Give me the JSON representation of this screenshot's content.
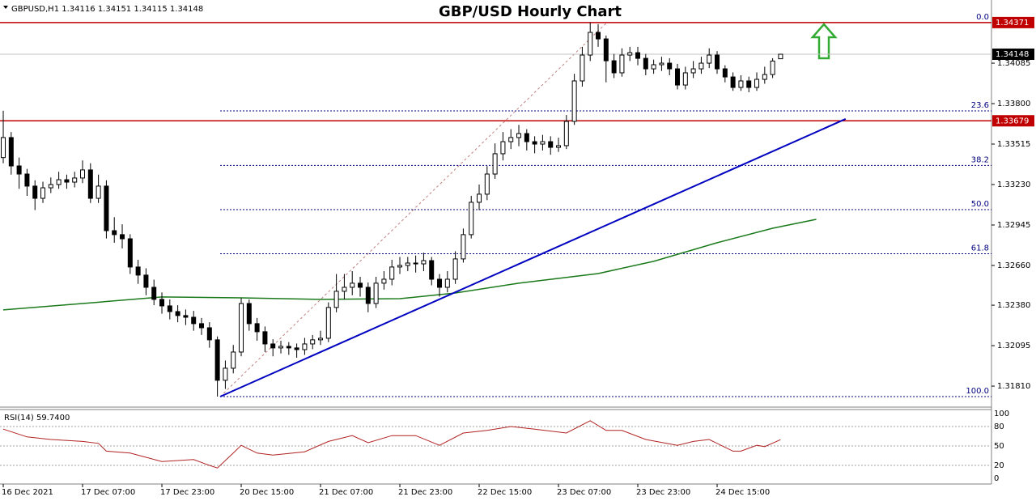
{
  "chart_data": {
    "type": "candlestick",
    "title": "GBP/USD Hourly Chart",
    "symbol": "GBPUSD,H1",
    "xlim": [
      -0.41,
      124.59
    ],
    "ylim": [
      1.31662,
      1.3453
    ],
    "yticks": [
      1.34085,
      {
        "value": 1.338,
        "label": "1.33800"
      },
      1.33515,
      {
        "value": 1.3323,
        "label": "1.33230"
      },
      1.32945,
      {
        "value": 1.3266,
        "label": "1.32660"
      },
      {
        "value": 1.3238,
        "label": "1.32380"
      },
      1.32095,
      {
        "value": 1.3181,
        "label": "1.31810"
      }
    ],
    "xticks": [
      {
        "value": 0,
        "label": "16 Dec 2021"
      },
      {
        "value": 10,
        "label": "17 Dec 07:00"
      },
      {
        "value": 20,
        "label": "17 Dec 23:00"
      },
      {
        "value": 30,
        "label": "20 Dec 15:00"
      },
      {
        "value": 40,
        "label": "21 Dec 07:00"
      },
      {
        "value": 50,
        "label": "21 Dec 23:00"
      },
      {
        "value": 60,
        "label": "22 Dec 15:00"
      },
      {
        "value": 70,
        "label": "23 Dec 07:00"
      },
      {
        "value": 80,
        "label": "23 Dec 23:00"
      },
      {
        "value": 90,
        "label": "24 Dec 15:00"
      }
    ],
    "candles": {
      "open": [
        1.3342,
        1.33561,
        1.33361,
        1.33304,
        1.33219,
        1.33133,
        1.33207,
        1.3323,
        1.33264,
        1.33247,
        1.33276,
        1.33333,
        1.33133,
        1.33219,
        1.32905,
        1.32877,
        1.32848,
        1.32649,
        1.32592,
        1.32506,
        1.32421,
        1.32375,
        1.32335,
        1.32307,
        1.32295,
        1.3225,
        1.32221,
        1.32136,
        1.31851,
        1.31936,
        1.3205,
        1.32392,
        1.3225,
        1.32193,
        1.32107,
        1.32079,
        1.3209,
        1.32079,
        1.32067,
        1.32107,
        1.32136,
        1.32147,
        1.32364,
        1.32478,
        1.32506,
        1.32535,
        1.32506,
        1.32392,
        1.32535,
        1.32563,
        1.32649,
        1.3266,
        1.32677,
        1.32671,
        1.32694,
        1.32563,
        1.32506,
        1.32563,
        1.32706,
        1.32877,
        1.33105,
        1.33162,
        1.33304,
        1.33447,
        1.33532,
        1.33561,
        1.33589,
        1.33532,
        1.33515,
        1.33532,
        1.33492,
        1.33504,
        1.33675,
        1.3396,
        1.34142,
        1.34302,
        1.34256,
        1.34102,
        1.34017,
        1.34142,
        1.34159,
        1.34119,
        1.34045,
        1.34074,
        1.34085,
        1.34045,
        1.33931,
        1.34017,
        1.34045,
        1.34085,
        1.34142,
        1.34045,
        1.33988,
        1.33914,
        1.3396,
        1.33914,
        1.33971,
        1.34005,
        1.34116
      ],
      "high": [
        1.3375,
        1.336,
        1.3342,
        1.3334,
        1.3326,
        1.3325,
        1.3328,
        1.3332,
        1.333,
        1.3332,
        1.334,
        1.3338,
        1.333,
        1.3326,
        1.33,
        1.3295,
        1.3288,
        1.327,
        1.3264,
        1.3256,
        1.3247,
        1.3242,
        1.3238,
        1.3235,
        1.3234,
        1.3229,
        1.3226,
        1.3216,
        1.3199,
        1.321,
        1.3243,
        1.3242,
        1.3229,
        1.3223,
        1.3214,
        1.3213,
        1.3212,
        1.3211,
        1.3215,
        1.3217,
        1.322,
        1.324,
        1.326,
        1.326,
        1.3262,
        1.3258,
        1.3254,
        1.3258,
        1.3262,
        1.327,
        1.3272,
        1.3272,
        1.3273,
        1.3275,
        1.3272,
        1.326,
        1.3262,
        1.3276,
        1.3292,
        1.3315,
        1.3323,
        1.3336,
        1.3352,
        1.336,
        1.3362,
        1.3365,
        1.3362,
        1.3357,
        1.3358,
        1.3357,
        1.3356,
        1.3372,
        1.3401,
        1.342,
        1.34371,
        1.3436,
        1.3428,
        1.3415,
        1.3419,
        1.342,
        1.342,
        1.3415,
        1.3411,
        1.3413,
        1.3412,
        1.3408,
        1.3406,
        1.341,
        1.3413,
        1.3419,
        1.3417,
        1.3407,
        1.3402,
        1.34,
        1.3399,
        1.3402,
        1.3406,
        1.3412,
        1.34151
      ],
      "low": [
        1.3338,
        1.333,
        1.332,
        1.3315,
        1.3305,
        1.331,
        1.3317,
        1.332,
        1.332,
        1.3321,
        1.3324,
        1.331,
        1.331,
        1.3285,
        1.3282,
        1.3278,
        1.326,
        1.3253,
        1.3245,
        1.3238,
        1.3232,
        1.3228,
        1.3226,
        1.3224,
        1.322,
        1.3217,
        1.3208,
        1.31736,
        1.3179,
        1.319,
        1.3202,
        1.322,
        1.3213,
        1.3205,
        1.3202,
        1.3204,
        1.3203,
        1.3201,
        1.3203,
        1.3207,
        1.321,
        1.3212,
        1.3233,
        1.3242,
        1.3245,
        1.3244,
        1.3233,
        1.3236,
        1.3249,
        1.3252,
        1.326,
        1.3262,
        1.3261,
        1.3262,
        1.3252,
        1.3244,
        1.3247,
        1.3253,
        1.3268,
        1.3285,
        1.3305,
        1.3312,
        1.3327,
        1.334,
        1.3348,
        1.335,
        1.3347,
        1.3345,
        1.3347,
        1.3344,
        1.3346,
        1.3348,
        1.3365,
        1.3392,
        1.341,
        1.342,
        1.3395,
        1.3398,
        1.3399,
        1.341,
        1.3407,
        1.34,
        1.3401,
        1.3403,
        1.34,
        1.339,
        1.339,
        1.3398,
        1.3401,
        1.3405,
        1.3401,
        1.3395,
        1.3389,
        1.3389,
        1.3388,
        1.3389,
        1.3394,
        1.3398,
        1.34115
      ],
      "close": [
        1.33561,
        1.33361,
        1.33304,
        1.33219,
        1.33133,
        1.33207,
        1.3323,
        1.33264,
        1.33247,
        1.33276,
        1.33333,
        1.33133,
        1.33219,
        1.32905,
        1.32877,
        1.32848,
        1.32649,
        1.32592,
        1.32506,
        1.32421,
        1.32375,
        1.32335,
        1.32307,
        1.32295,
        1.3225,
        1.32221,
        1.32136,
        1.31851,
        1.31936,
        1.3205,
        1.32392,
        1.3225,
        1.32193,
        1.32107,
        1.32079,
        1.3209,
        1.32079,
        1.32067,
        1.32107,
        1.32136,
        1.32147,
        1.32364,
        1.32478,
        1.32506,
        1.32535,
        1.32506,
        1.32392,
        1.32535,
        1.32563,
        1.32649,
        1.3266,
        1.32677,
        1.32671,
        1.32694,
        1.32563,
        1.32506,
        1.32563,
        1.32706,
        1.32877,
        1.33105,
        1.33162,
        1.33304,
        1.33447,
        1.33532,
        1.33561,
        1.33589,
        1.33532,
        1.33515,
        1.33532,
        1.33492,
        1.33504,
        1.33675,
        1.3396,
        1.34142,
        1.34302,
        1.34256,
        1.34102,
        1.34017,
        1.34142,
        1.34159,
        1.34119,
        1.34045,
        1.34074,
        1.34085,
        1.34045,
        1.33931,
        1.34017,
        1.34045,
        1.34085,
        1.34142,
        1.34045,
        1.33988,
        1.33914,
        1.3396,
        1.33914,
        1.33971,
        1.34005,
        1.341,
        1.34148
      ]
    },
    "moving_average": {
      "color": "#1a7a1a",
      "x": [
        0,
        10,
        20,
        30,
        40,
        50,
        57,
        65,
        75,
        82,
        90,
        97,
        102.5
      ],
      "values": [
        1.32347,
        1.32392,
        1.32438,
        1.32432,
        1.32421,
        1.32426,
        1.32466,
        1.32535,
        1.32603,
        1.32689,
        1.3282,
        1.32922,
        1.32985
      ]
    },
    "trendline": {
      "color": "#0000c0",
      "x": [
        27.35,
        106.2
      ],
      "values": [
        1.31736,
        1.33692
      ]
    },
    "levels": [
      {
        "value": 1.34371,
        "color": "#c00000"
      },
      {
        "value": 1.33679,
        "color": "#c00000"
      }
    ],
    "fibonacci": {
      "high": 1.34371,
      "low": 1.31736,
      "x": [
        27.35,
        76.1
      ],
      "levels": [
        {
          "value": 0,
          "label": "0.0"
        },
        23.6,
        38.2,
        {
          "value": 50,
          "label": "50.0"
        },
        61.8,
        {
          "value": 100,
          "label": "100.0"
        }
      ]
    },
    "rsi": {
      "title": "RSI(14) 59.7400",
      "color": "#b22222",
      "ylim": [
        0,
        100
      ],
      "yticks": [
        100,
        80,
        50,
        20,
        0
      ],
      "x": [
        0,
        3,
        6,
        10,
        12,
        13,
        16,
        20,
        24,
        26,
        27,
        29,
        30,
        32,
        34,
        38,
        41,
        44,
        46,
        49,
        52,
        55,
        58,
        61,
        64,
        67,
        71,
        74,
        76,
        78,
        81,
        85,
        87,
        89,
        92,
        93,
        95,
        96,
        98
      ],
      "values": [
        76,
        64,
        60,
        57,
        54,
        42,
        39,
        26,
        29,
        20,
        16,
        39,
        51,
        39,
        36,
        41,
        57,
        66,
        55,
        66,
        66,
        51,
        70,
        74,
        80,
        76,
        70,
        89,
        74,
        74,
        60,
        51,
        57,
        60,
        42,
        42,
        51,
        49,
        59.74
      ]
    }
  }
}
